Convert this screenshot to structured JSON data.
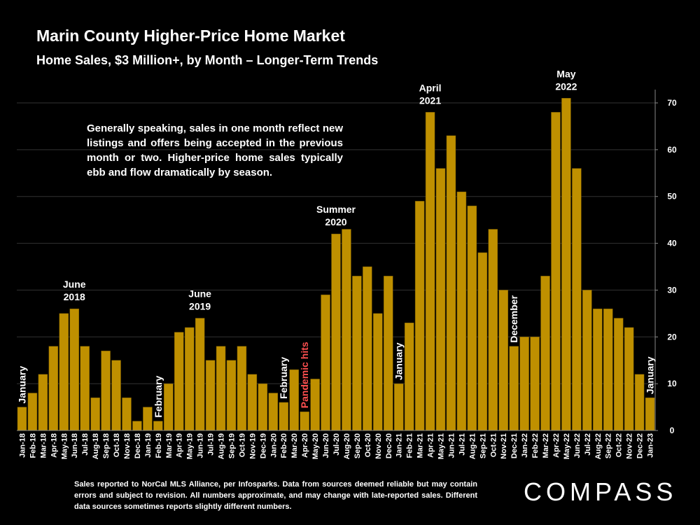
{
  "header": {
    "title": "Marin County Higher-Price Home Market",
    "subtitle": "Home Sales, $3 Million+, by Month – Longer-Term Trends"
  },
  "note": "Generally speaking, sales in one month reflect new listings and offers being accepted in the previous month or two. Higher-price home sales typically ebb and flow dramatically by season.",
  "footer": "Sales reported to NorCal MLS Alliance, per Infosparks. Data from sources deemed reliable but may contain errors and subject to revision. All numbers approximate, and may change with late-reported sales. Different data sources sometimes reports slightly different numbers.",
  "logo": "COMPASS",
  "colors": {
    "background": "#000000",
    "bar": "#bf9000",
    "bar_stroke": "#7a5c00",
    "highlight": "#ff5050",
    "text": "#ffffff",
    "grid": "#333333"
  },
  "chart_data": {
    "type": "bar",
    "title": "Marin County Higher-Price Home Market",
    "xlabel": "",
    "ylabel": "",
    "ylim": [
      0,
      70
    ],
    "yticks": [
      0,
      10,
      20,
      30,
      40,
      50,
      60,
      70
    ],
    "y_axis_side": "right",
    "categories": [
      "Jan-18",
      "Feb-18",
      "Mar-18",
      "Apr-18",
      "May-18",
      "Jun-18",
      "Jul-18",
      "Aug-18",
      "Sep-18",
      "Oct-18",
      "Nov-18",
      "Dec-18",
      "Jan-19",
      "Feb-19",
      "Mar-19",
      "Apr-19",
      "May-19",
      "Jun-19",
      "Jul-19",
      "Aug-19",
      "Sep-19",
      "Oct-19",
      "Nov-19",
      "Dec-19",
      "Jan-20",
      "Feb-20",
      "Mar-20",
      "Apr-20",
      "May-20",
      "Jun-20",
      "Jul-20",
      "Aug-20",
      "Sep-20",
      "Oct-20",
      "Nov-20",
      "Dec-20",
      "Jan-21",
      "Feb-21",
      "Mar-21",
      "Apr-21",
      "May-21",
      "Jun-21",
      "Jul-21",
      "Aug-21",
      "Sep-21",
      "Oct-21",
      "Nov-21",
      "Dec-21",
      "Jan-22",
      "Feb-22",
      "Mar-22",
      "Apr-22",
      "May-22",
      "Jun-22",
      "Jul-22",
      "Aug-22",
      "Sep-22",
      "Oct-22",
      "Nov-22",
      "Dec-22",
      "Jan-23"
    ],
    "values": [
      5,
      8,
      12,
      18,
      25,
      26,
      18,
      7,
      17,
      15,
      7,
      2,
      5,
      2,
      10,
      21,
      22,
      24,
      15,
      18,
      15,
      18,
      12,
      10,
      8,
      6,
      13,
      4,
      11,
      29,
      42,
      43,
      33,
      35,
      25,
      33,
      10,
      23,
      49,
      68,
      56,
      63,
      51,
      48,
      38,
      43,
      30,
      18,
      20,
      20,
      33,
      68,
      71,
      56,
      30,
      26,
      26,
      24,
      22,
      12,
      7
    ],
    "annotations": [
      {
        "index": 0,
        "text": "January",
        "rotated": true
      },
      {
        "index": 5,
        "lines": [
          "June",
          "2018"
        ],
        "rotated": false
      },
      {
        "index": 13,
        "text": "February",
        "rotated": true
      },
      {
        "index": 17,
        "lines": [
          "June",
          "2019"
        ],
        "rotated": false
      },
      {
        "index": 25,
        "text": "February",
        "rotated": true
      },
      {
        "index": 27,
        "text": "Pandemic hits",
        "rotated": true,
        "highlight": true
      },
      {
        "index": 30,
        "lines": [
          "Summer",
          "2020"
        ],
        "rotated": false
      },
      {
        "index": 36,
        "text": "January",
        "rotated": true
      },
      {
        "index": 39,
        "lines": [
          "April",
          "2021"
        ],
        "rotated": false
      },
      {
        "index": 47,
        "text": "December",
        "rotated": true
      },
      {
        "index": 52,
        "lines": [
          "May",
          "2022"
        ],
        "rotated": false
      },
      {
        "index": 60,
        "text": "January",
        "rotated": true
      }
    ]
  }
}
